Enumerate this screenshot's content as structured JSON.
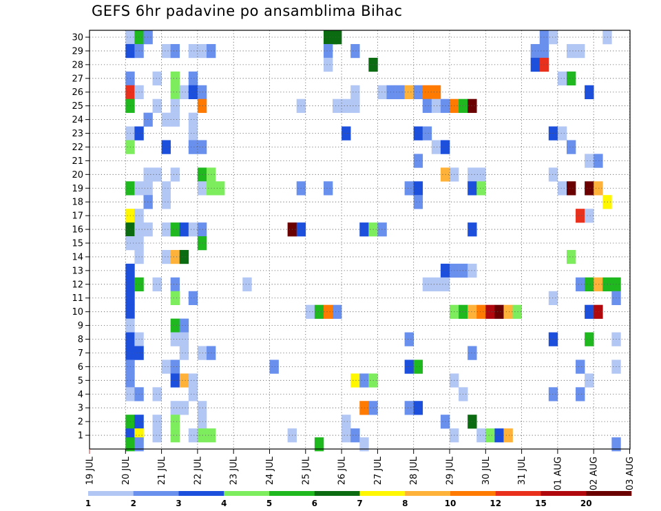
{
  "chart_data": {
    "type": "heatmap",
    "title": "GEFS 6hr padavine po ansamblima Bihac",
    "x_tick_labels": [
      "19 JUL",
      "20 JUL",
      "21 JUL",
      "22 JUL",
      "23 JUL",
      "24 JUL",
      "25 JUL",
      "26 JUL",
      "27 JUL",
      "28 JUL",
      "29 JUL",
      "30 JUL",
      "31 JUL",
      "01 AUG",
      "02 AUG",
      "03 AUG"
    ],
    "y_tick_labels": [
      "1",
      "2",
      "3",
      "4",
      "5",
      "6",
      "7",
      "8",
      "9",
      "10",
      "11",
      "12",
      "13",
      "14",
      "15",
      "16",
      "17",
      "18",
      "19",
      "20",
      "21",
      "22",
      "23",
      "24",
      "25",
      "26",
      "27",
      "28",
      "29",
      "30"
    ],
    "time_steps_per_day": 4,
    "grid": "dotted",
    "colorbar": {
      "labels": [
        "1",
        "2",
        "3",
        "4",
        "5",
        "6",
        "7",
        "8",
        "10",
        "12",
        "15",
        "20"
      ],
      "colors": [
        "#b3c7f5",
        "#6a90ee",
        "#1c4fdc",
        "#7ded5e",
        "#1fb91f",
        "#0b6b10",
        "#fff700",
        "#ffb23a",
        "#ff7a00",
        "#e8301c",
        "#b0080c",
        "#6b0000"
      ]
    },
    "cells": [
      [
        30,
        4,
        1
      ],
      [
        30,
        5,
        5
      ],
      [
        30,
        6,
        2
      ],
      [
        30,
        26,
        6
      ],
      [
        30,
        26.5,
        6
      ],
      [
        30,
        27,
        6
      ],
      [
        30,
        50,
        2
      ],
      [
        30,
        51,
        1
      ],
      [
        30,
        57,
        1
      ],
      [
        29,
        4,
        3
      ],
      [
        29,
        5,
        2
      ],
      [
        29,
        8,
        1
      ],
      [
        29,
        9,
        2
      ],
      [
        29,
        11,
        1
      ],
      [
        29,
        12,
        1
      ],
      [
        29,
        13,
        2
      ],
      [
        29,
        26,
        2
      ],
      [
        29,
        29,
        2
      ],
      [
        29,
        49,
        2
      ],
      [
        29,
        50,
        2
      ],
      [
        29,
        53,
        1
      ],
      [
        29,
        54,
        1
      ],
      [
        28,
        26,
        1
      ],
      [
        28,
        31,
        6
      ],
      [
        28,
        49,
        3
      ],
      [
        28,
        50,
        10
      ],
      [
        27,
        4,
        2
      ],
      [
        27,
        7,
        1
      ],
      [
        27,
        9,
        4
      ],
      [
        27,
        11,
        2
      ],
      [
        27,
        52,
        1
      ],
      [
        27,
        53,
        5
      ],
      [
        26,
        4,
        10
      ],
      [
        26,
        5,
        1
      ],
      [
        26,
        9,
        4
      ],
      [
        26,
        10,
        1
      ],
      [
        26,
        11,
        3
      ],
      [
        26,
        12,
        2
      ],
      [
        26,
        29,
        1
      ],
      [
        26,
        32,
        1
      ],
      [
        26,
        33,
        2
      ],
      [
        26,
        34,
        2
      ],
      [
        26,
        35,
        8
      ],
      [
        26,
        36,
        2
      ],
      [
        26,
        37,
        9
      ],
      [
        26,
        38,
        9
      ],
      [
        26,
        55,
        3
      ],
      [
        25,
        4,
        5
      ],
      [
        25,
        7,
        1
      ],
      [
        25,
        9,
        1
      ],
      [
        25,
        12,
        9
      ],
      [
        25,
        23,
        1
      ],
      [
        25,
        27,
        1
      ],
      [
        25,
        28,
        1
      ],
      [
        25,
        29,
        1
      ],
      [
        25,
        37,
        2
      ],
      [
        25,
        38,
        1
      ],
      [
        25,
        39,
        2
      ],
      [
        25,
        40,
        9
      ],
      [
        25,
        41,
        5
      ],
      [
        25,
        42,
        12
      ],
      [
        24,
        6,
        2
      ],
      [
        24,
        8,
        1
      ],
      [
        24,
        9,
        1
      ],
      [
        24,
        11,
        1
      ],
      [
        23,
        4,
        1
      ],
      [
        23,
        5,
        3
      ],
      [
        23,
        11,
        1
      ],
      [
        23,
        28,
        3
      ],
      [
        23,
        36,
        3
      ],
      [
        23,
        37,
        2
      ],
      [
        23,
        51,
        3
      ],
      [
        23,
        52,
        1
      ],
      [
        22,
        4,
        4
      ],
      [
        22,
        8,
        3
      ],
      [
        22,
        11,
        2
      ],
      [
        22,
        12,
        2
      ],
      [
        22,
        38,
        1
      ],
      [
        22,
        39,
        3
      ],
      [
        22,
        53,
        2
      ],
      [
        21,
        36,
        2
      ],
      [
        21,
        55,
        1
      ],
      [
        21,
        56,
        2
      ],
      [
        20,
        6,
        1
      ],
      [
        20,
        7,
        1
      ],
      [
        20,
        9,
        1
      ],
      [
        20,
        12,
        5
      ],
      [
        20,
        13,
        4
      ],
      [
        20,
        39,
        8
      ],
      [
        20,
        40,
        1
      ],
      [
        20,
        42,
        1
      ],
      [
        20,
        43,
        1
      ],
      [
        20,
        51,
        1
      ],
      [
        19,
        4,
        5
      ],
      [
        19,
        5,
        1
      ],
      [
        19,
        6,
        1
      ],
      [
        19,
        8,
        1
      ],
      [
        19,
        12,
        1
      ],
      [
        19,
        13,
        4
      ],
      [
        19,
        14,
        4
      ],
      [
        19,
        23,
        2
      ],
      [
        19,
        26,
        2
      ],
      [
        19,
        35,
        2
      ],
      [
        19,
        36,
        3
      ],
      [
        19,
        42,
        3
      ],
      [
        19,
        43,
        4
      ],
      [
        19,
        52,
        1
      ],
      [
        19,
        53,
        12
      ],
      [
        19,
        55,
        12
      ],
      [
        19,
        56,
        8
      ],
      [
        18,
        6,
        2
      ],
      [
        18,
        8,
        1
      ],
      [
        18,
        36,
        2
      ],
      [
        18,
        57,
        7
      ],
      [
        17,
        4,
        7
      ],
      [
        17,
        5,
        1
      ],
      [
        17,
        54,
        10
      ],
      [
        17,
        55,
        1
      ],
      [
        16,
        4,
        6
      ],
      [
        16,
        5,
        1
      ],
      [
        16,
        6,
        1
      ],
      [
        16,
        8,
        1
      ],
      [
        16,
        9,
        5
      ],
      [
        16,
        10,
        3
      ],
      [
        16,
        11,
        1
      ],
      [
        16,
        12,
        2
      ],
      [
        16,
        22,
        12
      ],
      [
        16,
        23,
        3
      ],
      [
        16,
        30,
        3
      ],
      [
        16,
        31,
        4
      ],
      [
        16,
        32,
        2
      ],
      [
        16,
        42,
        3
      ],
      [
        15,
        4,
        1
      ],
      [
        15,
        5,
        1
      ],
      [
        15,
        12,
        5
      ],
      [
        14,
        5,
        1
      ],
      [
        14,
        8,
        1
      ],
      [
        14,
        9,
        8
      ],
      [
        14,
        10,
        6
      ],
      [
        14,
        53,
        4
      ],
      [
        13,
        4,
        3
      ],
      [
        13,
        39,
        3
      ],
      [
        13,
        40,
        2
      ],
      [
        13,
        41,
        2
      ],
      [
        13,
        42,
        1
      ],
      [
        12,
        4,
        3
      ],
      [
        12,
        5,
        5
      ],
      [
        12,
        7,
        1
      ],
      [
        12,
        9,
        2
      ],
      [
        12,
        17,
        1
      ],
      [
        12,
        37,
        1
      ],
      [
        12,
        38,
        1
      ],
      [
        12,
        39,
        1
      ],
      [
        12,
        54,
        2
      ],
      [
        12,
        55,
        5
      ],
      [
        12,
        56,
        8
      ],
      [
        12,
        57,
        5
      ],
      [
        12,
        58,
        5
      ],
      [
        11,
        4,
        3
      ],
      [
        11,
        9,
        4
      ],
      [
        11,
        11,
        2
      ],
      [
        11,
        51,
        1
      ],
      [
        11,
        58,
        2
      ],
      [
        10,
        4,
        3
      ],
      [
        10,
        24,
        1
      ],
      [
        10,
        25,
        5
      ],
      [
        10,
        26,
        9
      ],
      [
        10,
        27,
        2
      ],
      [
        10,
        40,
        4
      ],
      [
        10,
        41,
        5
      ],
      [
        10,
        42,
        8
      ],
      [
        10,
        43,
        9
      ],
      [
        10,
        44,
        11
      ],
      [
        10,
        45,
        12
      ],
      [
        10,
        46,
        8
      ],
      [
        10,
        47,
        4
      ],
      [
        10,
        55,
        3
      ],
      [
        10,
        56,
        11
      ],
      [
        9,
        4,
        1
      ],
      [
        9,
        9,
        5
      ],
      [
        9,
        10,
        2
      ],
      [
        8,
        4,
        3
      ],
      [
        8,
        5,
        1
      ],
      [
        8,
        9,
        1
      ],
      [
        8,
        10,
        1
      ],
      [
        8,
        35,
        2
      ],
      [
        8,
        51,
        3
      ],
      [
        8,
        55,
        5
      ],
      [
        8,
        58,
        1
      ],
      [
        7,
        4,
        3
      ],
      [
        7,
        5,
        3
      ],
      [
        7,
        10,
        1
      ],
      [
        7,
        12,
        1
      ],
      [
        7,
        13,
        2
      ],
      [
        7,
        42,
        2
      ],
      [
        6,
        4,
        2
      ],
      [
        6,
        8,
        1
      ],
      [
        6,
        9,
        2
      ],
      [
        6,
        20,
        2
      ],
      [
        6,
        35,
        3
      ],
      [
        6,
        36,
        5
      ],
      [
        6,
        54,
        2
      ],
      [
        6,
        58,
        1
      ],
      [
        5,
        4,
        2
      ],
      [
        5,
        9,
        3
      ],
      [
        5,
        10,
        8
      ],
      [
        5,
        11,
        1
      ],
      [
        5,
        29,
        7
      ],
      [
        5,
        30,
        2
      ],
      [
        5,
        31,
        4
      ],
      [
        5,
        40,
        1
      ],
      [
        5,
        55,
        1
      ],
      [
        4,
        4,
        1
      ],
      [
        4,
        5,
        2
      ],
      [
        4,
        7,
        1
      ],
      [
        4,
        11,
        1
      ],
      [
        4,
        41,
        1
      ],
      [
        4,
        51,
        2
      ],
      [
        4,
        54,
        2
      ],
      [
        3,
        9,
        1
      ],
      [
        3,
        10,
        1
      ],
      [
        3,
        12,
        1
      ],
      [
        3,
        30,
        9
      ],
      [
        3,
        31,
        2
      ],
      [
        3,
        35,
        2
      ],
      [
        3,
        36,
        3
      ],
      [
        2,
        4,
        5
      ],
      [
        2,
        5,
        3
      ],
      [
        2,
        7,
        1
      ],
      [
        2,
        9,
        4
      ],
      [
        2,
        12,
        1
      ],
      [
        2,
        28,
        1
      ],
      [
        2,
        39,
        2
      ],
      [
        2,
        42,
        6
      ],
      [
        1,
        4,
        3
      ],
      [
        1,
        5,
        7
      ],
      [
        1,
        7,
        1
      ],
      [
        1,
        9,
        4
      ],
      [
        1,
        11,
        1
      ],
      [
        1,
        12,
        4
      ],
      [
        1,
        13,
        4
      ],
      [
        1,
        22,
        1
      ],
      [
        1,
        28,
        1
      ],
      [
        1,
        29,
        2
      ],
      [
        1,
        40,
        1
      ],
      [
        1,
        43,
        1
      ],
      [
        1,
        44,
        4
      ],
      [
        1,
        45,
        3
      ],
      [
        1,
        46,
        8
      ],
      [
        0.35,
        4,
        5
      ],
      [
        0.35,
        5,
        2
      ],
      [
        0.35,
        25,
        5
      ],
      [
        0.35,
        30,
        1
      ],
      [
        0.35,
        58,
        2
      ]
    ]
  }
}
